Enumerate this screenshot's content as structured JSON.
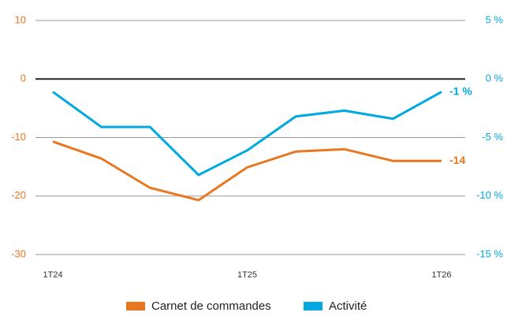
{
  "chart_data": {
    "type": "line",
    "categories": [
      "1T24",
      null,
      null,
      null,
      "1T25",
      null,
      null,
      null,
      "1T26"
    ],
    "series": [
      {
        "name": "Carnet de commandes",
        "color": "#e87722",
        "axis": "y",
        "values": [
          -10.7,
          -13.6,
          -18.6,
          -20.7,
          -15.1,
          -12.4,
          -12.0,
          -14,
          -14
        ],
        "value_labels": [
          null,
          null,
          null,
          null,
          null,
          null,
          null,
          null,
          "-14"
        ]
      },
      {
        "name": "Activité",
        "color": "#00a9e0",
        "axis": "y2",
        "values": [
          -1.1,
          -4.1,
          -4.1,
          -8.2,
          -6.1,
          -3.2,
          -2.7,
          -3.4,
          -1.1
        ],
        "value_labels": [
          null,
          null,
          null,
          null,
          null,
          null,
          null,
          null,
          "-1 %"
        ]
      }
    ],
    "ylim": [
      -30,
      10
    ],
    "yticks": [
      10,
      0,
      -10,
      -20,
      -30
    ],
    "y2lim": [
      -15,
      5
    ],
    "y2ticks": [
      {
        "value": 5,
        "label": "5 %"
      },
      {
        "value": 0,
        "label": "0 %"
      },
      {
        "value": -5,
        "label": "-5 %"
      },
      {
        "value": -10,
        "label": "-10 %"
      },
      {
        "value": -15,
        "label": "-15 %"
      }
    ],
    "grid": true,
    "legend": "bottom"
  }
}
